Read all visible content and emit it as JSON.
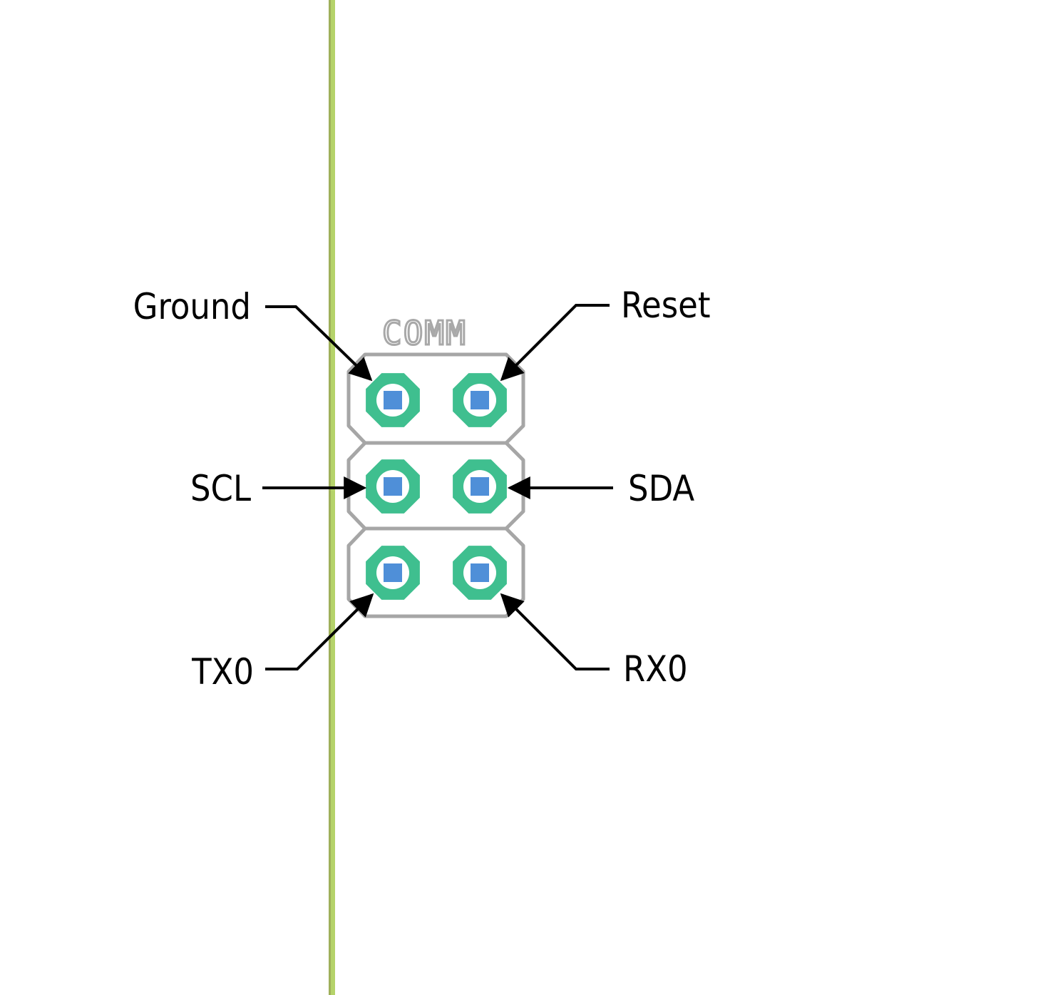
{
  "component": {
    "silkscreen_label": "COMM"
  },
  "colors": {
    "board_edge": "#b5d36a",
    "board_edge_shadow": "#9fb05a",
    "pad_ring": "#3fbf8f",
    "drill_hole": "#ffffff",
    "pad_core": "#4f8fd8",
    "silkscreen": "#a6a6a6",
    "annotation": "#000000",
    "background": "#ffffff"
  },
  "pins": {
    "ground": {
      "label": "Ground"
    },
    "reset": {
      "label": "Reset"
    },
    "scl": {
      "label": "SCL"
    },
    "sda": {
      "label": "SDA"
    },
    "tx0": {
      "label": "TX0"
    },
    "rx0": {
      "label": "RX0"
    }
  }
}
